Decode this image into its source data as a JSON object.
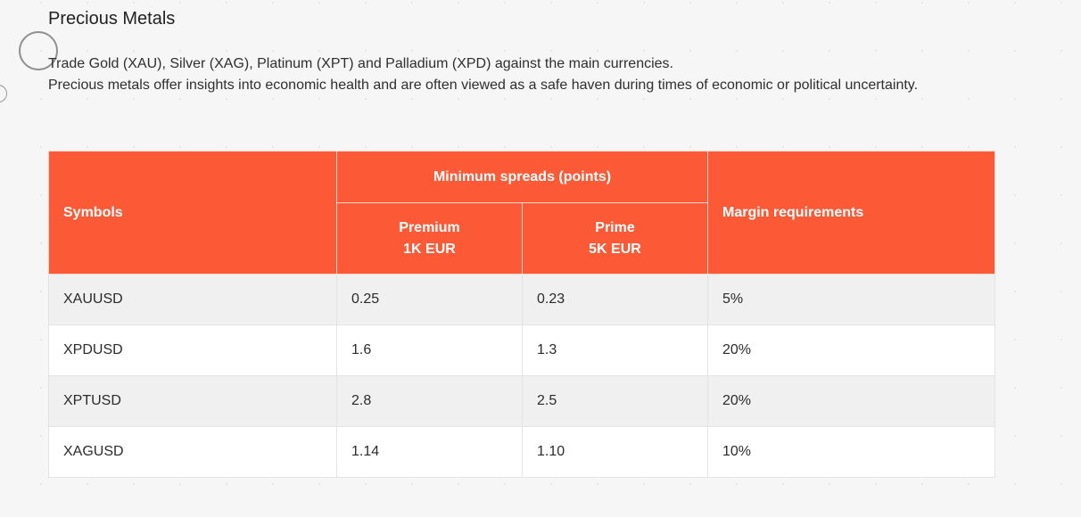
{
  "section": {
    "title": "Precious Metals",
    "description_line1": "Trade Gold (XAU), Silver (XAG), Platinum (XPT) and Palladium (XPD) against the main currencies.",
    "description_line2": "Precious metals offer insights into economic health and are often viewed as a safe haven during times of economic or political uncertainty."
  },
  "table": {
    "headers": {
      "symbols": "Symbols",
      "min_spreads": "Minimum spreads (points)",
      "premium_name": "Premium",
      "premium_deposit": "1K EUR",
      "prime_name": "Prime",
      "prime_deposit": "5K EUR",
      "margin": "Margin requirements"
    },
    "rows": [
      {
        "symbol": "XAUUSD",
        "premium": "0.25",
        "prime": "0.23",
        "margin": "5%"
      },
      {
        "symbol": "XPDUSD",
        "premium": "1.6",
        "prime": "1.3",
        "margin": "20%"
      },
      {
        "symbol": "XPTUSD",
        "premium": "2.8",
        "prime": "2.5",
        "margin": "20%"
      },
      {
        "symbol": "XAGUSD",
        "premium": "1.14",
        "prime": "1.10",
        "margin": "10%"
      }
    ]
  },
  "colors": {
    "header_bg": "#fc5a36",
    "header_text": "#ffffff",
    "row_alt_bg": "#f0f0f0",
    "page_bg": "#f6f6f6"
  }
}
